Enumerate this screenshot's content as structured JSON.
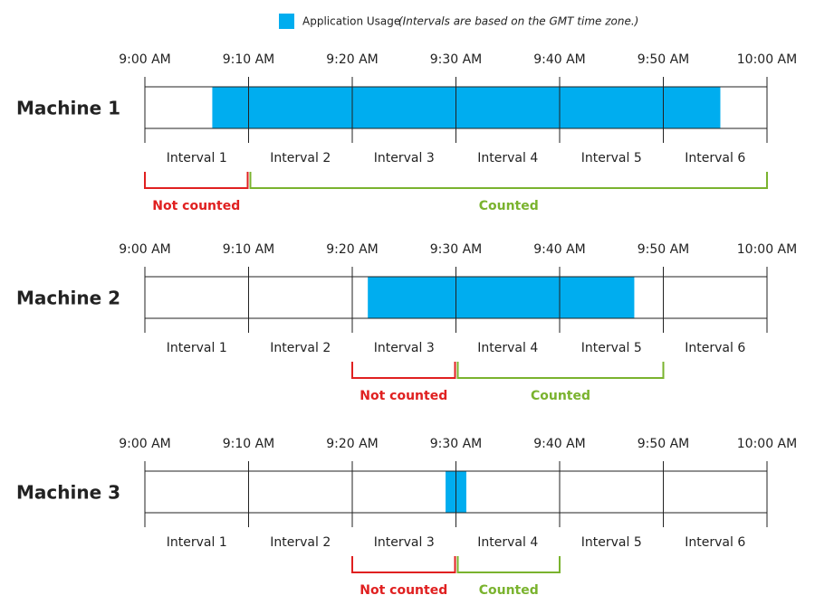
{
  "legend": {
    "label": "Application Usage",
    "note": "(Intervals are based on the GMT time zone.)"
  },
  "timeline": {
    "minutes_range": [
      0,
      60
    ],
    "tick_minutes": [
      0,
      10,
      20,
      30,
      40,
      50,
      60
    ],
    "time_labels": [
      "9:00 AM",
      "9:10 AM",
      "9:20 AM",
      "9:30 AM",
      "9:40 AM",
      "9:50 AM",
      "10:00 AM"
    ],
    "interval_labels": [
      "Interval 1",
      "Interval 2",
      "Interval 3",
      "Interval 4",
      "Interval 5",
      "Interval 6"
    ]
  },
  "machines": [
    {
      "label": "Machine 1",
      "usage_minutes": [
        6.5,
        55.5
      ],
      "not_counted": {
        "label": "Not counted",
        "minutes": [
          0,
          10
        ]
      },
      "counted": {
        "label": "Counted",
        "minutes": [
          10,
          60
        ]
      }
    },
    {
      "label": "Machine 2",
      "usage_minutes": [
        21.5,
        47.2
      ],
      "not_counted": {
        "label": "Not counted",
        "minutes": [
          20,
          30
        ]
      },
      "counted": {
        "label": "Counted",
        "minutes": [
          30,
          50
        ]
      }
    },
    {
      "label": "Machine 3",
      "usage_minutes": [
        29,
        31
      ],
      "not_counted": {
        "label": "Not counted",
        "minutes": [
          20,
          30
        ]
      },
      "counted": {
        "label": "Counted",
        "minutes": [
          30,
          40
        ]
      }
    }
  ]
}
